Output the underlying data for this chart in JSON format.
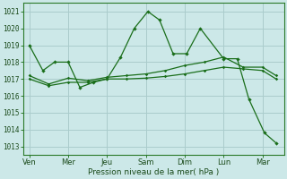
{
  "background_color": "#cce8e8",
  "grid_color": "#aacccc",
  "line_color": "#1a6e1a",
  "xlabel": "Pression niveau de la mer( hPa )",
  "yticks": [
    1013,
    1014,
    1015,
    1016,
    1017,
    1018,
    1019,
    1020,
    1021
  ],
  "x_labels": [
    "Ven",
    "Mer",
    "Jeu",
    "Sam",
    "Dim",
    "Lun",
    "Mar"
  ],
  "x_positions": [
    0,
    1,
    2,
    3,
    4,
    5,
    6
  ],
  "series1_x": [
    0.0,
    0.35,
    0.65,
    1.0,
    1.3,
    1.65,
    2.0,
    2.35,
    2.7,
    3.05,
    3.35,
    3.7,
    4.05,
    4.4,
    5.0,
    5.35,
    5.65,
    6.05,
    6.35
  ],
  "series1_y": [
    1019.0,
    1017.5,
    1018.0,
    1018.0,
    1016.5,
    1016.8,
    1017.0,
    1018.3,
    1020.0,
    1021.0,
    1020.5,
    1018.5,
    1018.5,
    1020.0,
    1018.2,
    1018.2,
    1015.8,
    1013.8,
    1013.2
  ],
  "series2_x": [
    0.0,
    0.5,
    1.0,
    1.5,
    2.0,
    2.5,
    3.0,
    3.5,
    4.0,
    4.5,
    5.0,
    5.5,
    6.0,
    6.35
  ],
  "series2_y": [
    1017.0,
    1016.6,
    1016.8,
    1016.8,
    1017.0,
    1017.0,
    1017.05,
    1017.15,
    1017.3,
    1017.5,
    1017.7,
    1017.6,
    1017.5,
    1017.0
  ],
  "series3_x": [
    0.0,
    0.5,
    1.0,
    1.5,
    2.0,
    2.5,
    3.0,
    3.5,
    4.0,
    4.5,
    5.0,
    5.5,
    6.0,
    6.35
  ],
  "series3_y": [
    1017.2,
    1016.7,
    1017.05,
    1016.9,
    1017.1,
    1017.2,
    1017.3,
    1017.5,
    1017.8,
    1018.0,
    1018.3,
    1017.7,
    1017.7,
    1017.2
  ]
}
